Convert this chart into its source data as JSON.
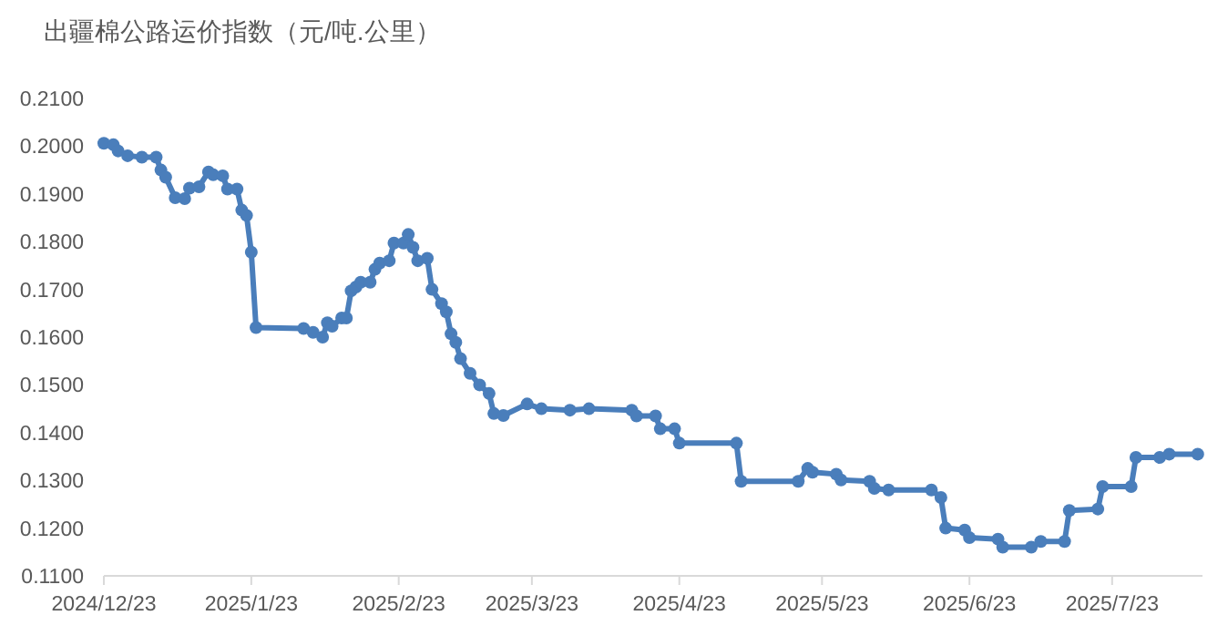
{
  "chart_data": {
    "type": "line",
    "title": "出疆棉公路运价指数（元/吨.公里）",
    "marker": "circle",
    "line_style": "solid",
    "x": [
      "2024-12-23",
      "2024-12-25",
      "2024-12-26",
      "2024-12-28",
      "2024-12-31",
      "2025-01-03",
      "2025-01-04",
      "2025-01-05",
      "2025-01-07",
      "2025-01-09",
      "2025-01-10",
      "2025-01-12",
      "2025-01-14",
      "2025-01-15",
      "2025-01-17",
      "2025-01-18",
      "2025-01-20",
      "2025-01-21",
      "2025-01-22",
      "2025-01-23",
      "2025-01-24",
      "2025-02-03",
      "2025-02-05",
      "2025-02-07",
      "2025-02-08",
      "2025-02-09",
      "2025-02-11",
      "2025-02-12",
      "2025-02-13",
      "2025-02-14",
      "2025-02-15",
      "2025-02-17",
      "2025-02-18",
      "2025-02-19",
      "2025-02-21",
      "2025-02-22",
      "2025-02-24",
      "2025-02-25",
      "2025-02-26",
      "2025-02-27",
      "2025-03-01",
      "2025-03-02",
      "2025-03-04",
      "2025-03-05",
      "2025-03-06",
      "2025-03-07",
      "2025-03-08",
      "2025-03-10",
      "2025-03-12",
      "2025-03-14",
      "2025-03-15",
      "2025-03-17",
      "2025-03-22",
      "2025-03-25",
      "2025-03-31",
      "2025-04-04",
      "2025-04-13",
      "2025-04-14",
      "2025-04-18",
      "2025-04-19",
      "2025-04-22",
      "2025-04-23",
      "2025-05-05",
      "2025-05-06",
      "2025-05-18",
      "2025-05-20",
      "2025-05-21",
      "2025-05-26",
      "2025-05-27",
      "2025-06-02",
      "2025-06-03",
      "2025-06-06",
      "2025-06-15",
      "2025-06-17",
      "2025-06-18",
      "2025-06-22",
      "2025-06-23",
      "2025-06-29",
      "2025-06-30",
      "2025-07-06",
      "2025-07-08",
      "2025-07-13",
      "2025-07-14",
      "2025-07-20",
      "2025-07-21",
      "2025-07-27",
      "2025-07-28",
      "2025-08-02",
      "2025-08-04",
      "2025-08-10"
    ],
    "series": [
      {
        "color": "#4a7ebb",
        "values": [
          0.2006,
          0.2003,
          0.199,
          0.198,
          0.1977,
          0.1977,
          0.195,
          0.1935,
          0.1892,
          0.189,
          0.1912,
          0.1915,
          0.1946,
          0.194,
          0.1938,
          0.191,
          0.191,
          0.1866,
          0.1855,
          0.1778,
          0.162,
          0.1618,
          0.161,
          0.16,
          0.163,
          0.1623,
          0.164,
          0.164,
          0.1697,
          0.1705,
          0.1715,
          0.1715,
          0.1742,
          0.1755,
          0.176,
          0.1797,
          0.1797,
          0.1815,
          0.1788,
          0.176,
          0.1765,
          0.17,
          0.167,
          0.1653,
          0.1607,
          0.1589,
          0.1555,
          0.1524,
          0.15,
          0.1482,
          0.144,
          0.1436,
          0.146,
          0.145,
          0.1447,
          0.145,
          0.1447,
          0.1435,
          0.1435,
          0.1408,
          0.1408,
          0.1378,
          0.1378,
          0.1298,
          0.1298,
          0.1325,
          0.1317,
          0.1313,
          0.1301,
          0.1298,
          0.1283,
          0.128,
          0.128,
          0.1264,
          0.12,
          0.1196,
          0.118,
          0.1177,
          0.116,
          0.116,
          0.1172,
          0.1172,
          0.1237,
          0.124,
          0.1287,
          0.1287,
          0.1348,
          0.1348,
          0.1355,
          0.1355
        ]
      }
    ],
    "xlim": [
      "2024-12-23",
      "2025-08-11"
    ],
    "ylim": [
      0.11,
      0.21
    ],
    "xticks": [
      {
        "value": "2024-12-23",
        "label": "2024/12/23"
      },
      {
        "value": "2025-01-23",
        "label": "2025/1/23"
      },
      {
        "value": "2025-02-23",
        "label": "2025/2/23"
      },
      {
        "value": "2025-03-23",
        "label": "2025/3/23"
      },
      {
        "value": "2025-04-23",
        "label": "2025/4/23"
      },
      {
        "value": "2025-05-23",
        "label": "2025/5/23"
      },
      {
        "value": "2025-06-23",
        "label": "2025/6/23"
      },
      {
        "value": "2025-07-23",
        "label": "2025/7/23"
      }
    ],
    "yticks": [
      {
        "value": 0.11,
        "label": "0.1100"
      },
      {
        "value": 0.12,
        "label": "0.1200"
      },
      {
        "value": 0.13,
        "label": "0.1300"
      },
      {
        "value": 0.14,
        "label": "0.1400"
      },
      {
        "value": 0.15,
        "label": "0.1500"
      },
      {
        "value": 0.16,
        "label": "0.1600"
      },
      {
        "value": 0.17,
        "label": "0.1700"
      },
      {
        "value": 0.18,
        "label": "0.1800"
      },
      {
        "value": 0.19,
        "label": "0.1900"
      },
      {
        "value": 0.2,
        "label": "0.2000"
      },
      {
        "value": 0.21,
        "label": "0.2100"
      }
    ]
  }
}
